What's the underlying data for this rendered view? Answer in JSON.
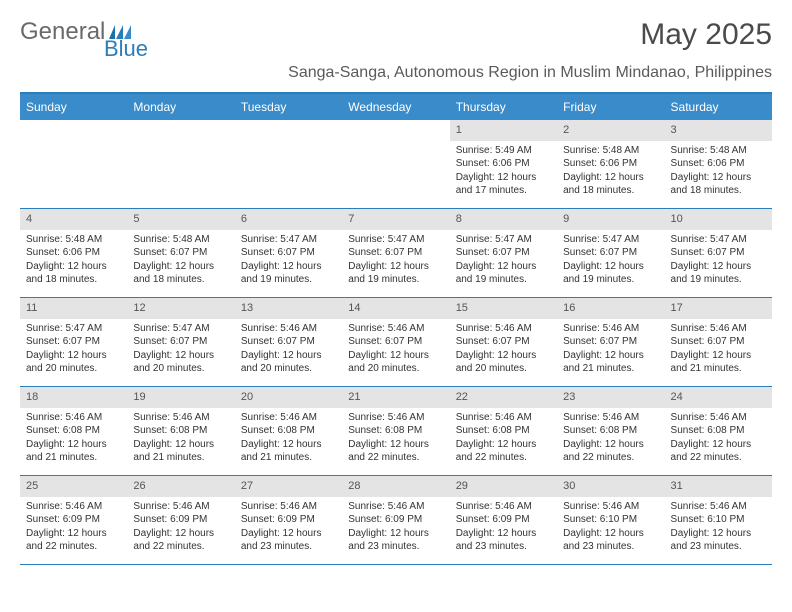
{
  "logo": {
    "text1": "General",
    "text2": "Blue"
  },
  "title": "May 2025",
  "subtitle": "Sanga-Sanga, Autonomous Region in Muslim Mindanao, Philippines",
  "colors": {
    "header_bg": "#3a8bc9",
    "border": "#2a7fba",
    "numrow_bg": "#e4e4e4",
    "text": "#333333",
    "title": "#4a4a4a",
    "logo_gray": "#6a6a6a",
    "logo_blue": "#2a7fba"
  },
  "dayNames": [
    "Sunday",
    "Monday",
    "Tuesday",
    "Wednesday",
    "Thursday",
    "Friday",
    "Saturday"
  ],
  "weeks": [
    [
      {
        "n": "",
        "sr": "",
        "ss": "",
        "dl1": "",
        "dl2": ""
      },
      {
        "n": "",
        "sr": "",
        "ss": "",
        "dl1": "",
        "dl2": ""
      },
      {
        "n": "",
        "sr": "",
        "ss": "",
        "dl1": "",
        "dl2": ""
      },
      {
        "n": "",
        "sr": "",
        "ss": "",
        "dl1": "",
        "dl2": ""
      },
      {
        "n": "1",
        "sr": "Sunrise: 5:49 AM",
        "ss": "Sunset: 6:06 PM",
        "dl1": "Daylight: 12 hours",
        "dl2": "and 17 minutes."
      },
      {
        "n": "2",
        "sr": "Sunrise: 5:48 AM",
        "ss": "Sunset: 6:06 PM",
        "dl1": "Daylight: 12 hours",
        "dl2": "and 18 minutes."
      },
      {
        "n": "3",
        "sr": "Sunrise: 5:48 AM",
        "ss": "Sunset: 6:06 PM",
        "dl1": "Daylight: 12 hours",
        "dl2": "and 18 minutes."
      }
    ],
    [
      {
        "n": "4",
        "sr": "Sunrise: 5:48 AM",
        "ss": "Sunset: 6:06 PM",
        "dl1": "Daylight: 12 hours",
        "dl2": "and 18 minutes."
      },
      {
        "n": "5",
        "sr": "Sunrise: 5:48 AM",
        "ss": "Sunset: 6:07 PM",
        "dl1": "Daylight: 12 hours",
        "dl2": "and 18 minutes."
      },
      {
        "n": "6",
        "sr": "Sunrise: 5:47 AM",
        "ss": "Sunset: 6:07 PM",
        "dl1": "Daylight: 12 hours",
        "dl2": "and 19 minutes."
      },
      {
        "n": "7",
        "sr": "Sunrise: 5:47 AM",
        "ss": "Sunset: 6:07 PM",
        "dl1": "Daylight: 12 hours",
        "dl2": "and 19 minutes."
      },
      {
        "n": "8",
        "sr": "Sunrise: 5:47 AM",
        "ss": "Sunset: 6:07 PM",
        "dl1": "Daylight: 12 hours",
        "dl2": "and 19 minutes."
      },
      {
        "n": "9",
        "sr": "Sunrise: 5:47 AM",
        "ss": "Sunset: 6:07 PM",
        "dl1": "Daylight: 12 hours",
        "dl2": "and 19 minutes."
      },
      {
        "n": "10",
        "sr": "Sunrise: 5:47 AM",
        "ss": "Sunset: 6:07 PM",
        "dl1": "Daylight: 12 hours",
        "dl2": "and 19 minutes."
      }
    ],
    [
      {
        "n": "11",
        "sr": "Sunrise: 5:47 AM",
        "ss": "Sunset: 6:07 PM",
        "dl1": "Daylight: 12 hours",
        "dl2": "and 20 minutes."
      },
      {
        "n": "12",
        "sr": "Sunrise: 5:47 AM",
        "ss": "Sunset: 6:07 PM",
        "dl1": "Daylight: 12 hours",
        "dl2": "and 20 minutes."
      },
      {
        "n": "13",
        "sr": "Sunrise: 5:46 AM",
        "ss": "Sunset: 6:07 PM",
        "dl1": "Daylight: 12 hours",
        "dl2": "and 20 minutes."
      },
      {
        "n": "14",
        "sr": "Sunrise: 5:46 AM",
        "ss": "Sunset: 6:07 PM",
        "dl1": "Daylight: 12 hours",
        "dl2": "and 20 minutes."
      },
      {
        "n": "15",
        "sr": "Sunrise: 5:46 AM",
        "ss": "Sunset: 6:07 PM",
        "dl1": "Daylight: 12 hours",
        "dl2": "and 20 minutes."
      },
      {
        "n": "16",
        "sr": "Sunrise: 5:46 AM",
        "ss": "Sunset: 6:07 PM",
        "dl1": "Daylight: 12 hours",
        "dl2": "and 21 minutes."
      },
      {
        "n": "17",
        "sr": "Sunrise: 5:46 AM",
        "ss": "Sunset: 6:07 PM",
        "dl1": "Daylight: 12 hours",
        "dl2": "and 21 minutes."
      }
    ],
    [
      {
        "n": "18",
        "sr": "Sunrise: 5:46 AM",
        "ss": "Sunset: 6:08 PM",
        "dl1": "Daylight: 12 hours",
        "dl2": "and 21 minutes."
      },
      {
        "n": "19",
        "sr": "Sunrise: 5:46 AM",
        "ss": "Sunset: 6:08 PM",
        "dl1": "Daylight: 12 hours",
        "dl2": "and 21 minutes."
      },
      {
        "n": "20",
        "sr": "Sunrise: 5:46 AM",
        "ss": "Sunset: 6:08 PM",
        "dl1": "Daylight: 12 hours",
        "dl2": "and 21 minutes."
      },
      {
        "n": "21",
        "sr": "Sunrise: 5:46 AM",
        "ss": "Sunset: 6:08 PM",
        "dl1": "Daylight: 12 hours",
        "dl2": "and 22 minutes."
      },
      {
        "n": "22",
        "sr": "Sunrise: 5:46 AM",
        "ss": "Sunset: 6:08 PM",
        "dl1": "Daylight: 12 hours",
        "dl2": "and 22 minutes."
      },
      {
        "n": "23",
        "sr": "Sunrise: 5:46 AM",
        "ss": "Sunset: 6:08 PM",
        "dl1": "Daylight: 12 hours",
        "dl2": "and 22 minutes."
      },
      {
        "n": "24",
        "sr": "Sunrise: 5:46 AM",
        "ss": "Sunset: 6:08 PM",
        "dl1": "Daylight: 12 hours",
        "dl2": "and 22 minutes."
      }
    ],
    [
      {
        "n": "25",
        "sr": "Sunrise: 5:46 AM",
        "ss": "Sunset: 6:09 PM",
        "dl1": "Daylight: 12 hours",
        "dl2": "and 22 minutes."
      },
      {
        "n": "26",
        "sr": "Sunrise: 5:46 AM",
        "ss": "Sunset: 6:09 PM",
        "dl1": "Daylight: 12 hours",
        "dl2": "and 22 minutes."
      },
      {
        "n": "27",
        "sr": "Sunrise: 5:46 AM",
        "ss": "Sunset: 6:09 PM",
        "dl1": "Daylight: 12 hours",
        "dl2": "and 23 minutes."
      },
      {
        "n": "28",
        "sr": "Sunrise: 5:46 AM",
        "ss": "Sunset: 6:09 PM",
        "dl1": "Daylight: 12 hours",
        "dl2": "and 23 minutes."
      },
      {
        "n": "29",
        "sr": "Sunrise: 5:46 AM",
        "ss": "Sunset: 6:09 PM",
        "dl1": "Daylight: 12 hours",
        "dl2": "and 23 minutes."
      },
      {
        "n": "30",
        "sr": "Sunrise: 5:46 AM",
        "ss": "Sunset: 6:10 PM",
        "dl1": "Daylight: 12 hours",
        "dl2": "and 23 minutes."
      },
      {
        "n": "31",
        "sr": "Sunrise: 5:46 AM",
        "ss": "Sunset: 6:10 PM",
        "dl1": "Daylight: 12 hours",
        "dl2": "and 23 minutes."
      }
    ]
  ]
}
